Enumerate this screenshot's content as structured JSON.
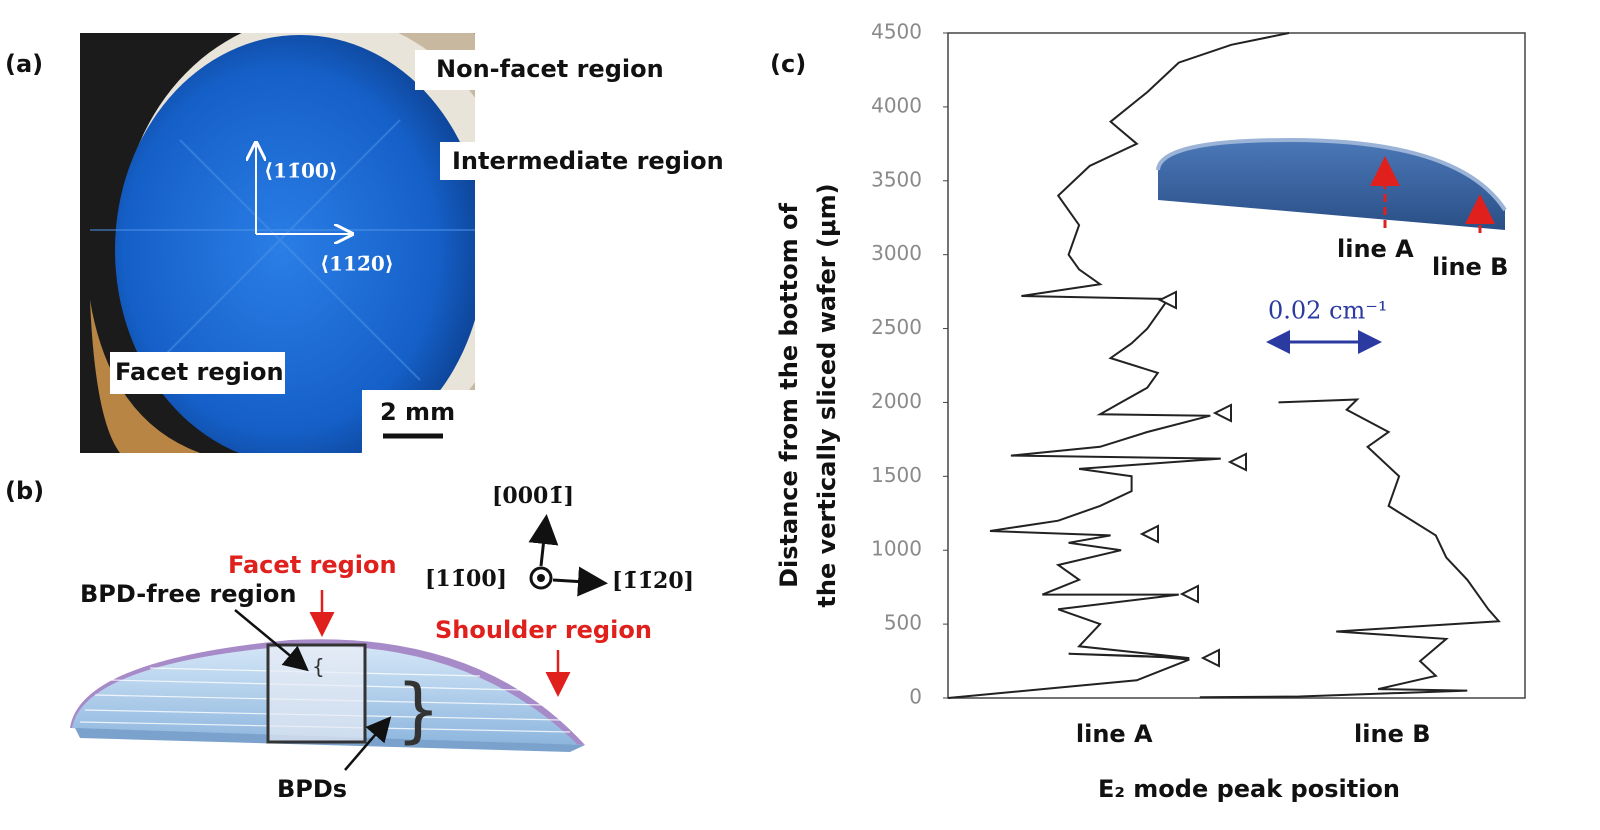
{
  "panel_a": {
    "label": "(a)",
    "non_facet": "Non-facet region",
    "intermediate": "Intermediate region",
    "facet": "Facet region",
    "scale_bar": "2 mm",
    "dir_up": "⟨11̄00⟩",
    "dir_right": "⟨112̄0⟩"
  },
  "panel_b": {
    "label": "(b)",
    "facet": "Facet region",
    "bpd_free": "BPD-free region",
    "shoulder": "Shoulder region",
    "bpds": "BPDs",
    "axis_up": "[0001̄]",
    "axis_left": "[11̄00]",
    "axis_right": "[1̄1̄20]"
  },
  "panel_c": {
    "label": "(c)",
    "inset_line_a": "line A",
    "inset_line_b": "line B",
    "scale_bar": "0.02 cm⁻¹",
    "chart_data": {
      "type": "line",
      "ylabel": [
        "Distance from the bottom of",
        "the vertically sliced wafer (μm)"
      ],
      "xlabel": "E₂ mode peak position",
      "categories": [
        "line A",
        "line B"
      ],
      "ylim": [
        0,
        4500
      ],
      "yticks": [
        0,
        500,
        1000,
        1500,
        2000,
        2500,
        3000,
        3500,
        4000,
        4500
      ],
      "xlim": [
        0,
        0.11
      ],
      "series": [
        {
          "name": "line A",
          "color": "#222222",
          "x": [
            0,
            0.036,
            0.046,
            0.04,
            0.023,
            0.046,
            0.025,
            0.029,
            0.021,
            0.044,
            0.018,
            0.025,
            0.021,
            0.033,
            0.023,
            0.031,
            0.008,
            0.021,
            0.029,
            0.035,
            0.035,
            0.025,
            0.052,
            0.012,
            0.029,
            0.038,
            0.05,
            0.029,
            0.033,
            0.038,
            0.04,
            0.031,
            0.035,
            0.038,
            0.04,
            0.042,
            0.014,
            0.029,
            0.025,
            0.023,
            0.025,
            0.021,
            0.027,
            0.036,
            0.031,
            0.038,
            0.044,
            0.054,
            0.065
          ],
          "values": [
            0,
            120,
            260,
            280,
            300,
            270,
            350,
            500,
            600,
            700,
            700,
            800,
            900,
            1000,
            1050,
            1100,
            1130,
            1200,
            1300,
            1400,
            1500,
            1550,
            1620,
            1640,
            1700,
            1800,
            1910,
            1920,
            2000,
            2100,
            2200,
            2300,
            2400,
            2500,
            2600,
            2700,
            2720,
            2800,
            2900,
            3000,
            3200,
            3400,
            3600,
            3750,
            3900,
            4100,
            4300,
            4420,
            4500
          ]
        },
        {
          "name": "line B",
          "color": "#222222",
          "x": [
            0.063,
            0.078,
            0.076,
            0.084,
            0.08,
            0.086,
            0.084,
            0.093,
            0.095,
            0.099,
            0.103,
            0.105,
            0.074,
            0.095,
            0.09,
            0.093,
            0.082,
            0.099,
            0.067,
            0.048
          ],
          "values": [
            2000,
            2020,
            1950,
            1800,
            1700,
            1500,
            1300,
            1100,
            950,
            800,
            600,
            520,
            450,
            400,
            250,
            150,
            60,
            50,
            10,
            5
          ]
        }
      ]
    }
  }
}
